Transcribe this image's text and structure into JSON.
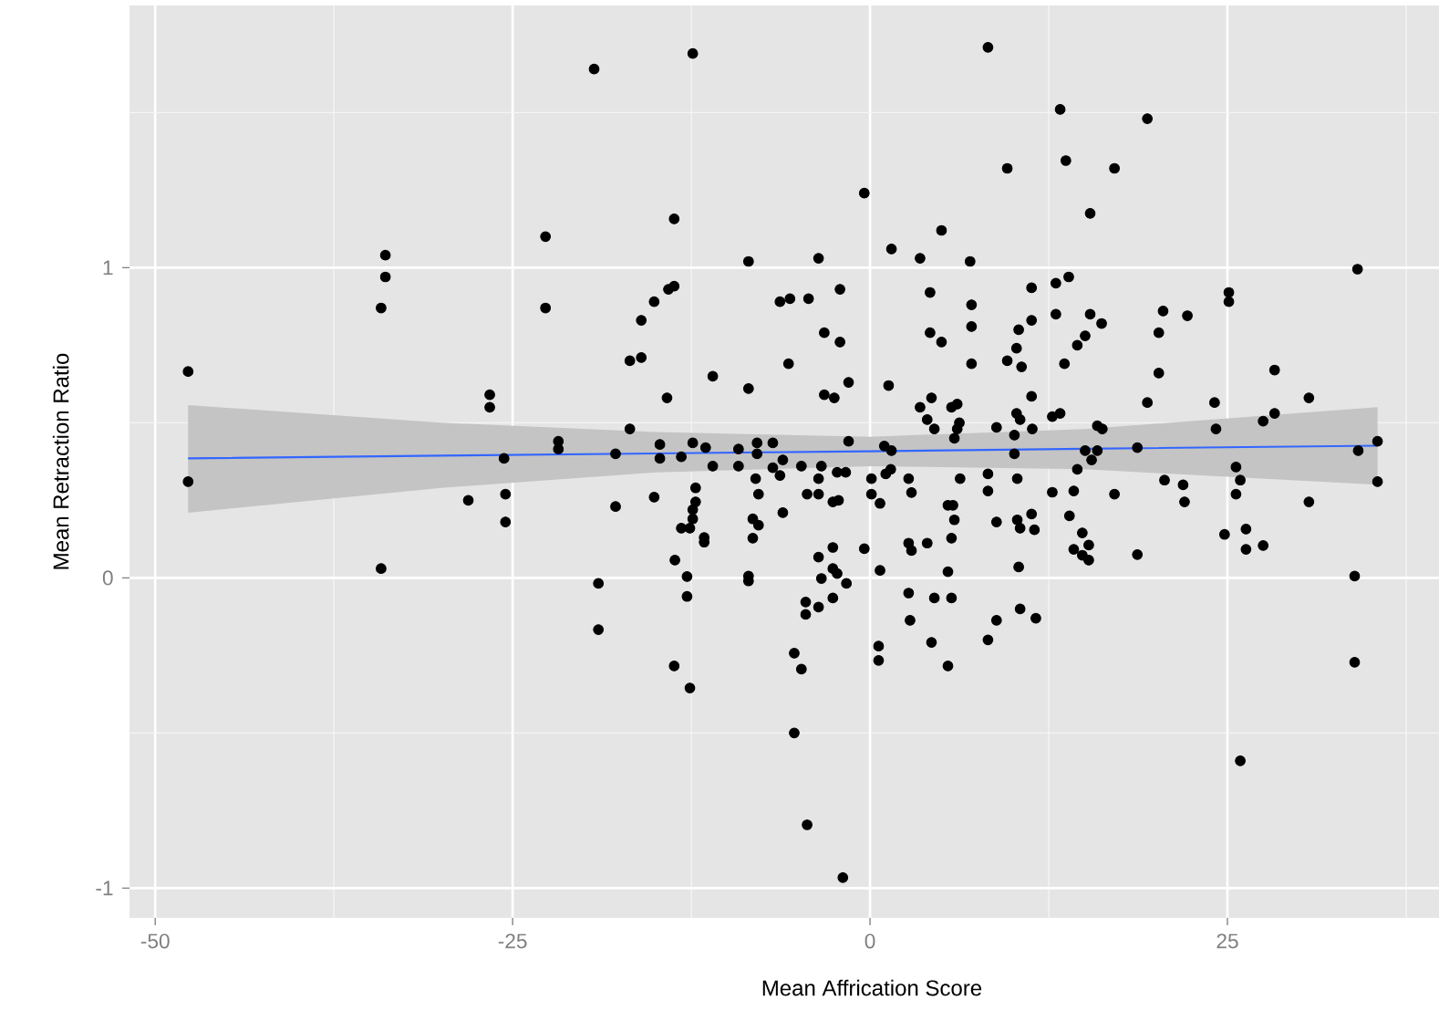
{
  "chart_data": {
    "type": "scatter",
    "xlabel": "Mean Affrication Score",
    "ylabel": "Mean Retraction Ratio",
    "xlim": [
      -51.8,
      39.8
    ],
    "ylim": [
      -1.096,
      1.845
    ],
    "xticks": [
      -50,
      -25,
      0,
      25
    ],
    "yticks": [
      -1,
      0,
      1
    ],
    "grid": true,
    "series": [
      {
        "color": "#000000",
        "marker": "circle",
        "x": [
          -47.7,
          -47.7,
          -33.9,
          -33.9,
          -34.2,
          -26.6,
          -26.6,
          -25.6,
          -34.2,
          -28.1,
          -25.5,
          -25.5,
          -19.3,
          -12.4,
          -22.7,
          -13.7,
          -0.4,
          -22.7,
          -8.5,
          -3.6,
          1.5,
          3.5,
          5.0,
          7.0,
          -13.7,
          -14.1,
          -15.1,
          -16.0,
          -16.8,
          -16.0,
          -14.2,
          -16.8,
          -11.0,
          -8.5,
          -6.3,
          -5.6,
          -4.3,
          -2.1,
          -3.2,
          -2.1,
          -5.7,
          -1.5,
          -3.2,
          -2.5,
          1.3,
          4.2,
          4.2,
          5.0,
          7.1,
          7.1,
          7.1,
          3.5,
          4.3,
          5.7,
          6.1,
          4.0,
          4.5,
          6.25,
          6.1,
          5.9,
          -21.8,
          -21.8,
          -17.8,
          -14.7,
          -14.7,
          -13.2,
          -12.4,
          -11.5,
          -11.0,
          -9.2,
          -9.2,
          -7.9,
          -7.9,
          -6.8,
          -6.1,
          -6.8,
          -4.8,
          -3.4,
          -1.5,
          1.0,
          1.5,
          -8.0,
          -6.3,
          -3.6,
          -2.3,
          -1.7,
          0.1,
          1.1,
          1.45,
          2.7,
          6.3,
          -12.2,
          8.25,
          13.3,
          19.4,
          9.6,
          13.7,
          17.1,
          15.4,
          34.1,
          11.3,
          13.0,
          13.9,
          13.0,
          15.4,
          16.2,
          15.05,
          14.5,
          11.3,
          10.4,
          10.25,
          9.6,
          10.6,
          13.6,
          20.5,
          22.2,
          20.2,
          20.2,
          25.1,
          25.1,
          28.3,
          30.7,
          19.4,
          24.1,
          11.3,
          10.25,
          10.5,
          12.75,
          13.3,
          8.85,
          11.35,
          15.9,
          16.25,
          28.3,
          27.5,
          24.2,
          10.1,
          10.1,
          15.05,
          15.9,
          15.5,
          18.7,
          35.5,
          34.15,
          25.6,
          14.5,
          8.25,
          10.3,
          20.6,
          21.9,
          25.9,
          35.5,
          -17.8,
          -15.1,
          -12.2,
          -12.4,
          -12.4,
          -13.2,
          -12.6,
          -11.6,
          -11.6,
          -13.65,
          -12.8,
          -12.8,
          -19.0,
          -19.0,
          -13.7,
          -12.6,
          -7.8,
          -8.2,
          -7.8,
          -8.2,
          -6.1,
          -8.5,
          -8.5,
          -4.4,
          -3.6,
          -2.6,
          -2.2,
          0.1,
          0.7,
          2.9,
          -2.6,
          -3.6,
          -0.4,
          -3.4,
          -2.6,
          -2.3,
          -1.65,
          -4.5,
          -4.5,
          -3.6,
          -2.6,
          0.7,
          2.7,
          2.9,
          4.0,
          2.7,
          2.8,
          4.5,
          5.7,
          5.45,
          5.7,
          5.9,
          5.45,
          5.8,
          4.3,
          5.45,
          0.6,
          0.6,
          -5.3,
          -4.8,
          -5.3,
          -4.4,
          -1.9,
          8.25,
          12.75,
          14.25,
          17.1,
          22.0,
          25.6,
          30.7,
          8.85,
          10.3,
          10.5,
          11.3,
          11.5,
          13.95,
          14.85,
          15.3,
          14.25,
          14.85,
          15.3,
          18.7,
          10.4,
          24.8,
          26.3,
          26.3,
          27.5,
          33.9,
          8.85,
          8.25,
          10.5,
          11.6,
          33.9,
          25.9
        ],
        "values": [
          0.665,
          0.31,
          1.04,
          0.97,
          0.87,
          0.59,
          0.55,
          0.385,
          0.03,
          0.25,
          0.27,
          0.18,
          1.64,
          1.69,
          1.1,
          1.157,
          1.24,
          0.87,
          1.02,
          1.03,
          1.06,
          1.03,
          1.12,
          1.02,
          0.94,
          0.93,
          0.89,
          0.83,
          0.7,
          0.71,
          0.58,
          0.48,
          0.65,
          0.61,
          0.89,
          0.9,
          0.9,
          0.93,
          0.79,
          0.76,
          0.69,
          0.63,
          0.59,
          0.58,
          0.62,
          0.92,
          0.79,
          0.76,
          0.81,
          0.69,
          0.88,
          0.55,
          0.58,
          0.55,
          0.56,
          0.51,
          0.48,
          0.5,
          0.48,
          0.45,
          0.44,
          0.415,
          0.4,
          0.43,
          0.385,
          0.39,
          0.435,
          0.42,
          0.36,
          0.415,
          0.36,
          0.435,
          0.4,
          0.435,
          0.38,
          0.355,
          0.36,
          0.36,
          0.44,
          0.425,
          0.41,
          0.32,
          0.33,
          0.32,
          0.34,
          0.34,
          0.32,
          0.335,
          0.35,
          0.32,
          0.32,
          0.29,
          1.71,
          1.51,
          1.48,
          1.32,
          1.345,
          1.32,
          1.175,
          0.995,
          0.935,
          0.95,
          0.97,
          0.85,
          0.85,
          0.82,
          0.78,
          0.75,
          0.83,
          0.8,
          0.74,
          0.7,
          0.68,
          0.69,
          0.86,
          0.845,
          0.79,
          0.66,
          0.92,
          0.89,
          0.67,
          0.58,
          0.565,
          0.565,
          0.585,
          0.53,
          0.51,
          0.52,
          0.53,
          0.485,
          0.48,
          0.49,
          0.48,
          0.53,
          0.505,
          0.48,
          0.46,
          0.4,
          0.41,
          0.41,
          0.38,
          0.42,
          0.44,
          0.41,
          0.357,
          0.35,
          0.335,
          0.32,
          0.315,
          0.3,
          0.315,
          0.31,
          0.23,
          0.26,
          0.245,
          0.22,
          0.19,
          0.16,
          0.16,
          0.13,
          0.115,
          0.057,
          0.004,
          -0.06,
          -0.018,
          -0.167,
          -0.284,
          -0.355,
          0.27,
          0.19,
          0.17,
          0.128,
          0.21,
          0.006,
          -0.01,
          0.27,
          0.27,
          0.245,
          0.25,
          0.27,
          0.24,
          0.275,
          0.098,
          0.067,
          0.094,
          -0.002,
          0.03,
          0.014,
          -0.018,
          -0.078,
          -0.118,
          -0.094,
          -0.065,
          0.024,
          0.112,
          0.088,
          0.112,
          -0.049,
          -0.137,
          -0.065,
          -0.065,
          0.02,
          0.128,
          0.187,
          0.234,
          0.234,
          -0.208,
          -0.284,
          -0.22,
          -0.266,
          -0.243,
          -0.294,
          -0.5,
          -0.796,
          -0.966,
          0.28,
          0.276,
          0.28,
          0.27,
          0.245,
          0.27,
          0.245,
          0.18,
          0.187,
          0.16,
          0.206,
          0.155,
          0.2,
          0.145,
          0.106,
          0.092,
          0.073,
          0.057,
          0.075,
          0.035,
          0.14,
          0.157,
          0.092,
          0.104,
          0.006,
          -0.137,
          -0.2,
          -0.1,
          -0.13,
          -0.272,
          -0.59
        ]
      },
      {
        "type": "line",
        "color": "#3366ff",
        "marker": "none",
        "line_style": "solid",
        "x": [
          -47.7,
          -30,
          -15,
          0,
          15,
          35.5
        ],
        "values": [
          0.385,
          0.394,
          0.401,
          0.408,
          0.416,
          0.426
        ],
        "lower": [
          0.21,
          0.29,
          0.34,
          0.36,
          0.35,
          0.3
        ],
        "upper": [
          0.557,
          0.5,
          0.47,
          0.455,
          0.48,
          0.55
        ]
      }
    ]
  }
}
